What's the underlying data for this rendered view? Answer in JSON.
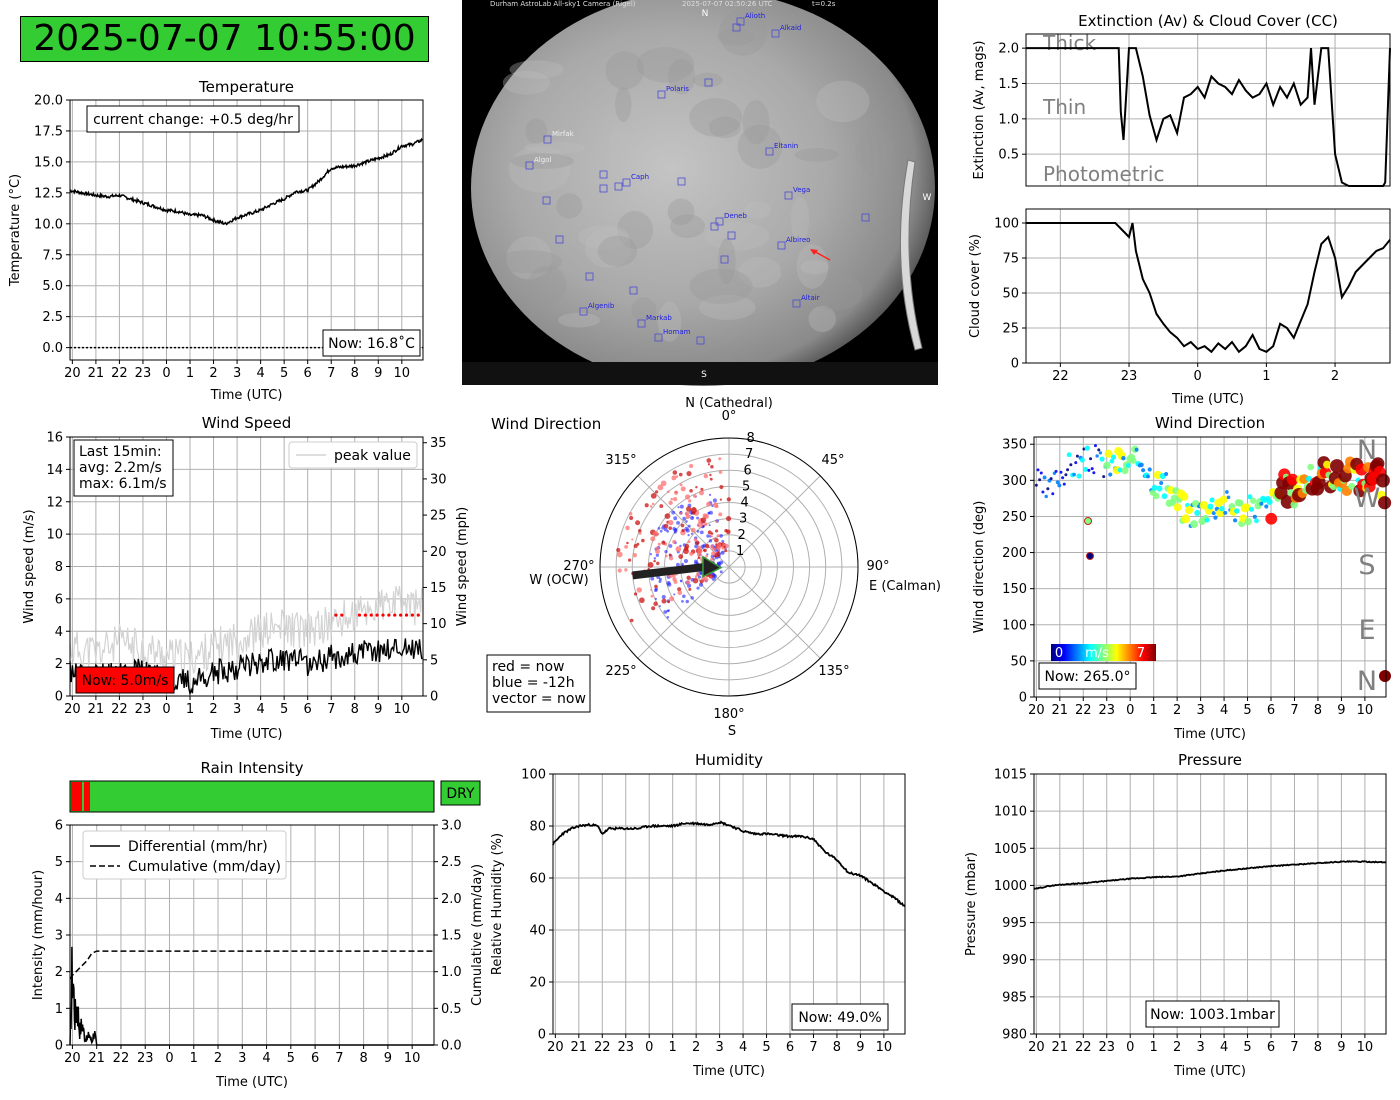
{
  "clock": "2025-07-07 10:55:00",
  "colors": {
    "ok_green": "#33cc33",
    "alert_red": "#ff0000",
    "grid": "#b0b0b0",
    "peak_grey": "#d3d3d3"
  },
  "hour_ticks_night": [
    "20",
    "21",
    "22",
    "23",
    "0",
    "1",
    "2",
    "3",
    "4",
    "5",
    "6",
    "7",
    "8",
    "9",
    "10"
  ],
  "temperature": {
    "title": "Temperature",
    "xlabel": "Time (UTC)",
    "ylabel": "Temperature (°C)",
    "change_label": "current change: +0.5 deg/hr",
    "now_label": "Now: 16.8˚C",
    "y_ticks": [
      "0.0",
      "2.5",
      "5.0",
      "7.5",
      "10.0",
      "12.5",
      "15.0",
      "17.5",
      "20.0"
    ]
  },
  "camera": {
    "header_name": "Durham AstroLab All-sky1 Camera (Rigel)",
    "header_time": "2025-07-07 02:50:26 UTC",
    "header_exposure": "t=0.2s",
    "compass": {
      "n": "N",
      "s": "S",
      "w": "W"
    },
    "stars": [
      {
        "name": "Alioth"
      },
      {
        "name": "Alkaid"
      },
      {
        "name": "Polaris"
      },
      {
        "name": "Mirfak"
      },
      {
        "name": "Algol"
      },
      {
        "name": "Caph"
      },
      {
        "name": "Eltanin"
      },
      {
        "name": "Vega"
      },
      {
        "name": "Deneb"
      },
      {
        "name": "Albireo"
      },
      {
        "name": "Altair"
      },
      {
        "name": "Algenib"
      },
      {
        "name": "Markab"
      },
      {
        "name": "Homam"
      }
    ]
  },
  "extinction": {
    "title": "Extinction (Av) & Cloud Cover (CC)",
    "ylabel": "Extinction (Av, mags)",
    "zones": [
      "Thick",
      "Thin",
      "Photometric"
    ],
    "y_ticks": [
      "0.5",
      "1.0",
      "1.5",
      "2.0"
    ]
  },
  "cloud": {
    "ylabel": "Cloud cover (%)",
    "xlabel": "Time (UTC)",
    "x_ticks": [
      "22",
      "23",
      "0",
      "1",
      "2"
    ],
    "y_ticks": [
      "0",
      "25",
      "50",
      "75",
      "100"
    ]
  },
  "wind_speed": {
    "title": "Wind Speed",
    "xlabel": "Time (UTC)",
    "ylabel": "Wind speed (m/s)",
    "ylabel_right": "Wind speed (mph)",
    "stats_lines": [
      "Last 15min:",
      "avg: 2.2m/s",
      "max: 6.1m/s"
    ],
    "legend": "peak value",
    "now_label": "Now: 5.0m/s",
    "y_ticks": [
      "0",
      "2",
      "4",
      "6",
      "8",
      "10",
      "12",
      "14",
      "16"
    ],
    "y_ticks_right": [
      "0",
      "5",
      "10",
      "15",
      "20",
      "25",
      "30",
      "35"
    ]
  },
  "wind_polar": {
    "title": "Wind Direction",
    "north": "N (Cathedral)",
    "east": "E (Calman)",
    "west": "W (OCW)",
    "south": "S",
    "angles": [
      "0°",
      "45°",
      "90°",
      "135°",
      "180°",
      "225°",
      "270°",
      "315°"
    ],
    "radii": [
      "1",
      "2",
      "3",
      "4",
      "5",
      "6",
      "7",
      "8"
    ],
    "legend_lines": [
      "red = now",
      "blue = -12h",
      "vector = now"
    ]
  },
  "wind_dir": {
    "title": "Wind Direction",
    "xlabel": "Time (UTC)",
    "ylabel": "Wind direction (deg)",
    "compass": [
      "N",
      "W",
      "S",
      "E",
      "N"
    ],
    "cbar_min": "0",
    "cbar_unit": "m/s",
    "cbar_max": "7",
    "now_label": "Now: 265.0°",
    "y_ticks": [
      "0",
      "50",
      "100",
      "150",
      "200",
      "250",
      "300",
      "350"
    ]
  },
  "rain": {
    "title": "Rain Intensity",
    "status": "DRY",
    "xlabel": "Time (UTC)",
    "ylabel": "Intensity (mm/hour)",
    "ylabel_right": "Cumulative (mm/day)",
    "legend_solid": "Differential (mm/hr)",
    "legend_dashed": "Cumulative (mm/day)",
    "y_ticks": [
      "0",
      "1",
      "2",
      "3",
      "4",
      "5",
      "6"
    ],
    "y_ticks_right": [
      "0.0",
      "0.5",
      "1.0",
      "1.5",
      "2.0",
      "2.5",
      "3.0"
    ]
  },
  "humidity": {
    "title": "Humidity",
    "xlabel": "Time (UTC)",
    "ylabel": "Relative Humidity (%)",
    "now_label": "Now: 49.0%",
    "y_ticks": [
      "0",
      "20",
      "40",
      "60",
      "80",
      "100"
    ]
  },
  "pressure": {
    "title": "Pressure",
    "xlabel": "Time (UTC)",
    "ylabel": "Pressure (mbar)",
    "now_label": "Now: 1003.1mbar",
    "y_ticks": [
      "980",
      "985",
      "990",
      "995",
      "1000",
      "1005",
      "1010",
      "1015"
    ]
  },
  "chart_data": [
    {
      "type": "line",
      "title": "Temperature",
      "xlabel": "Time (UTC)",
      "ylabel": "Temperature (°C)",
      "ylim": [
        -1,
        20
      ],
      "xlim": [
        19.9,
        34.9
      ],
      "series": [
        {
          "x": [
            19.9,
            20.4,
            21.0,
            21.5,
            22.0,
            22.5,
            23.0,
            23.5,
            24.0,
            24.5,
            25.0,
            25.5,
            26.0,
            26.5,
            27.0,
            27.5,
            28.0,
            28.5,
            29.0,
            29.5,
            30.0,
            30.5,
            31.0,
            31.5,
            32.0,
            32.5,
            33.0,
            33.5,
            34.0,
            34.4,
            34.9
          ],
          "y": [
            12.7,
            12.5,
            12.3,
            12.2,
            12.3,
            12.0,
            11.7,
            11.4,
            11.1,
            11.0,
            10.7,
            10.7,
            10.3,
            10.0,
            10.5,
            10.8,
            11.1,
            11.6,
            12.0,
            12.6,
            12.7,
            13.5,
            14.5,
            14.6,
            14.7,
            15.0,
            15.3,
            15.6,
            16.3,
            16.4,
            16.8
          ]
        },
        {
          "x": [
            19.9,
            34.9
          ],
          "y": [
            0,
            0
          ]
        }
      ],
      "annotations": [
        "current change: +0.5 deg/hr",
        "Now: 16.8˚C"
      ]
    },
    {
      "type": "line",
      "title": "Extinction (Av) & Cloud Cover (CC)",
      "ylabel": "Extinction (Av, mags)",
      "ylim": [
        0.05,
        2.2
      ],
      "xlim": [
        21.5,
        26.8
      ],
      "series": [
        {
          "x": [
            21.5,
            22.0,
            22.5,
            22.85,
            22.88,
            22.92,
            23.0,
            23.1,
            23.2,
            23.3,
            23.4,
            23.5,
            23.6,
            23.7,
            23.8,
            23.9,
            24.0,
            24.1,
            24.2,
            24.3,
            24.4,
            24.5,
            24.6,
            24.7,
            24.8,
            24.9,
            25.0,
            25.1,
            25.2,
            25.3,
            25.4,
            25.5,
            25.6,
            25.65,
            25.7,
            25.8,
            25.9,
            26.0,
            26.1,
            26.2,
            26.3,
            26.4,
            26.5,
            26.6,
            26.7,
            26.73,
            26.8
          ],
          "y": [
            2.0,
            2.0,
            2.0,
            2.0,
            1.1,
            0.7,
            2.0,
            2.0,
            1.6,
            1.05,
            0.7,
            1.0,
            1.05,
            0.8,
            1.3,
            1.35,
            1.45,
            1.3,
            1.6,
            1.5,
            1.45,
            1.35,
            1.55,
            1.4,
            1.3,
            1.35,
            1.5,
            1.2,
            1.45,
            1.3,
            1.5,
            1.2,
            1.3,
            2.0,
            1.2,
            2.0,
            2.0,
            0.5,
            0.1,
            0.05,
            0.05,
            0.05,
            0.05,
            0.05,
            0.05,
            0.1,
            2.0
          ]
        }
      ],
      "annotations": [
        "Thick",
        "Thin",
        "Photometric"
      ]
    },
    {
      "type": "line",
      "ylabel": "Cloud cover (%)",
      "xlabel": "Time (UTC)",
      "ylim": [
        0,
        110
      ],
      "xlim": [
        21.5,
        26.8
      ],
      "series": [
        {
          "x": [
            21.5,
            22.0,
            22.5,
            22.8,
            22.9,
            23.0,
            23.05,
            23.1,
            23.2,
            23.3,
            23.4,
            23.5,
            23.6,
            23.7,
            23.8,
            23.9,
            24.0,
            24.1,
            24.2,
            24.3,
            24.4,
            24.5,
            24.6,
            24.7,
            24.8,
            24.9,
            25.0,
            25.1,
            25.2,
            25.3,
            25.4,
            25.5,
            25.6,
            25.7,
            25.8,
            25.9,
            26.0,
            26.1,
            26.2,
            26.3,
            26.4,
            26.5,
            26.6,
            26.7,
            26.8
          ],
          "y": [
            100,
            100,
            100,
            100,
            95,
            90,
            100,
            80,
            60,
            50,
            35,
            28,
            22,
            18,
            12,
            15,
            10,
            12,
            8,
            14,
            10,
            15,
            8,
            12,
            20,
            10,
            8,
            12,
            28,
            25,
            18,
            30,
            42,
            65,
            85,
            90,
            75,
            47,
            55,
            65,
            70,
            75,
            80,
            82,
            88
          ]
        }
      ]
    },
    {
      "type": "line",
      "title": "Wind Speed",
      "xlabel": "Time (UTC)",
      "ylabel": "Wind speed (m/s)",
      "ylim": [
        0,
        16
      ],
      "xlim": [
        19.9,
        34.9
      ],
      "series": [
        {
          "name": "peak value",
          "x": [
            19.9,
            21.0,
            22.0,
            23.0,
            24.0,
            25.0,
            26.0,
            27.0,
            28.0,
            29.0,
            30.0,
            31.0,
            32.0,
            33.0,
            34.0,
            34.9
          ],
          "y": [
            2.5,
            2.2,
            2.8,
            2.5,
            2.0,
            1.8,
            2.5,
            3.0,
            3.5,
            3.8,
            3.5,
            4.0,
            4.5,
            5.0,
            5.2,
            5.0
          ]
        },
        {
          "x": [
            19.9,
            21.0,
            22.0,
            23.0,
            24.0,
            25.0,
            26.0,
            27.0,
            28.0,
            29.0,
            30.0,
            31.0,
            32.0,
            33.0,
            34.0,
            34.9
          ],
          "y": [
            1.5,
            1.3,
            1.6,
            1.5,
            1.2,
            0.8,
            1.4,
            1.8,
            2.2,
            2.3,
            2.0,
            2.4,
            2.6,
            2.8,
            3.0,
            2.9
          ]
        }
      ],
      "annotations": [
        "Last 15min:",
        "avg: 2.2m/s",
        "max: 6.1m/s",
        "Now: 5.0m/s"
      ]
    },
    {
      "type": "scatter",
      "title": "Wind Direction",
      "polar": true,
      "rlim": [
        0,
        8
      ],
      "annotations": [
        "red = now",
        "blue = -12h",
        "vector = now"
      ],
      "vector": {
        "direction_deg": 265,
        "speed": 5.0
      }
    },
    {
      "type": "scatter",
      "title": "Wind Direction",
      "xlabel": "Time (UTC)",
      "ylabel": "Wind direction (deg)",
      "ylim": [
        0,
        360
      ],
      "xlim": [
        19.9,
        34.9
      ],
      "series": [
        {
          "x": [
            20.0,
            20.5,
            21.0,
            21.5,
            22.0,
            22.5,
            23.0,
            23.5,
            24.0,
            24.5,
            25.0,
            25.5,
            26.0,
            26.5,
            27.0,
            27.5,
            28.0,
            28.5,
            29.0,
            29.5,
            30.0,
            30.5,
            31.0,
            31.5,
            32.0,
            32.5,
            33.0,
            33.5,
            34.0,
            34.5,
            34.9
          ],
          "y": [
            300,
            280,
            310,
            320,
            325,
            330,
            320,
            325,
            320,
            330,
            300,
            290,
            270,
            255,
            260,
            265,
            270,
            260,
            258,
            262,
            265,
            290,
            285,
            300,
            300,
            310,
            300,
            310,
            300,
            320,
            265
          ]
        }
      ],
      "annotations": [
        "Now: 265.0°"
      ]
    },
    {
      "type": "line",
      "title": "Rain Intensity",
      "xlabel": "Time (UTC)",
      "ylabel": "Intensity (mm/hour)",
      "ylim": [
        0,
        6
      ],
      "xlim": [
        19.9,
        34.9
      ],
      "series": [
        {
          "name": "Differential (mm/hr)",
          "x": [
            19.9,
            20.0,
            20.1,
            20.2,
            20.3,
            20.4,
            20.5,
            20.6,
            20.7,
            20.8,
            20.9,
            21.0
          ],
          "y": [
            0,
            3.0,
            1.0,
            1.5,
            0.5,
            0.8,
            0.3,
            0.2,
            0.4,
            0.1,
            0.5,
            0
          ]
        },
        {
          "name": "Cumulative (mm/day)",
          "x": [
            19.9,
            20.0,
            20.3,
            20.6,
            20.8,
            21.0,
            34.9
          ],
          "y": [
            0.9,
            0.95,
            1.05,
            1.15,
            1.25,
            1.28,
            1.28
          ]
        }
      ],
      "annotations": [
        "DRY"
      ]
    },
    {
      "type": "line",
      "title": "Humidity",
      "xlabel": "Time (UTC)",
      "ylabel": "Relative Humidity (%)",
      "ylim": [
        0,
        100
      ],
      "xlim": [
        19.9,
        34.9
      ],
      "series": [
        {
          "x": [
            19.9,
            20.3,
            20.7,
            21.0,
            21.5,
            21.8,
            22.0,
            22.3,
            22.7,
            23.0,
            23.5,
            24.0,
            24.5,
            25.0,
            25.5,
            26.0,
            26.5,
            27.0,
            27.5,
            28.0,
            28.5,
            29.0,
            29.5,
            30.0,
            30.5,
            31.0,
            31.5,
            32.0,
            32.5,
            33.0,
            33.5,
            34.0,
            34.5,
            34.9
          ],
          "y": [
            73,
            77,
            79,
            80,
            80.5,
            80,
            77,
            79,
            79,
            79,
            79,
            80,
            80,
            80,
            81,
            81,
            80.5,
            81.5,
            80,
            78,
            77,
            77,
            76.5,
            76,
            76,
            75,
            70,
            67,
            62,
            61,
            58,
            55,
            52,
            49
          ]
        }
      ],
      "annotations": [
        "Now: 49.0%"
      ]
    },
    {
      "type": "line",
      "title": "Pressure",
      "xlabel": "Time (UTC)",
      "ylabel": "Pressure (mbar)",
      "ylim": [
        980,
        1015
      ],
      "xlim": [
        19.9,
        34.9
      ],
      "series": [
        {
          "x": [
            19.9,
            20.5,
            21.0,
            22.0,
            23.0,
            24.0,
            25.0,
            26.0,
            27.0,
            28.0,
            29.0,
            30.0,
            31.0,
            32.0,
            33.0,
            34.0,
            34.9
          ],
          "y": [
            999.5,
            999.9,
            1000.1,
            1000.3,
            1000.6,
            1000.9,
            1001.1,
            1001.2,
            1001.6,
            1002.0,
            1002.3,
            1002.6,
            1002.8,
            1003.0,
            1003.2,
            1003.2,
            1003.1
          ]
        }
      ],
      "annotations": [
        "Now: 1003.1mbar"
      ]
    }
  ]
}
